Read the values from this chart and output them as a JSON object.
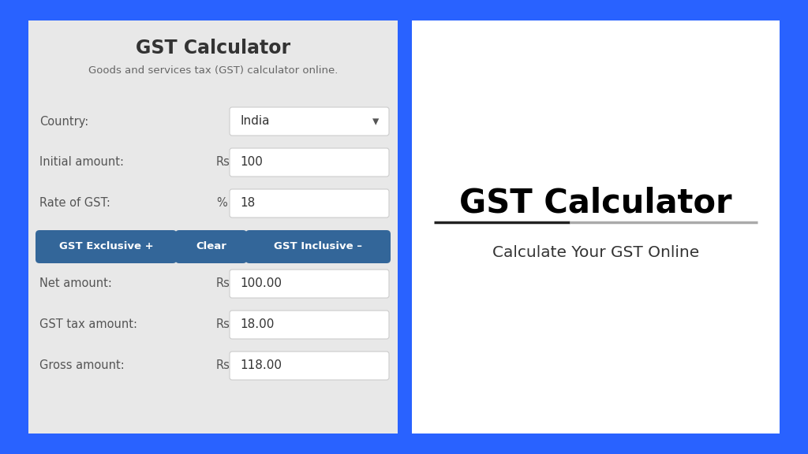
{
  "bg_color": "#2962FF",
  "left_panel_bg": "#E8E8E8",
  "right_panel_bg": "#FFFFFF",
  "card_title": "GST Calculator",
  "card_subtitle": "Goods and services tax (GST) calculator online.",
  "right_title": "GST Calculator",
  "right_subtitle": "Calculate Your GST Online",
  "fields": [
    {
      "label": "Country:",
      "unit": "",
      "value": "India",
      "is_dropdown": true
    },
    {
      "label": "Initial amount:",
      "unit": "Rs",
      "value": "100",
      "is_dropdown": false
    },
    {
      "label": "Rate of GST:",
      "unit": "%",
      "value": "18",
      "is_dropdown": false
    }
  ],
  "buttons": [
    {
      "text": "GST Exclusive +",
      "color": "#336699"
    },
    {
      "text": "Clear",
      "color": "#336699"
    },
    {
      "text": "GST Inclusive –",
      "color": "#336699"
    }
  ],
  "results": [
    {
      "label": "Net amount:",
      "unit": "Rs",
      "value": "100.00"
    },
    {
      "label": "GST tax amount:",
      "unit": "Rs",
      "value": "18.00"
    },
    {
      "label": "Gross amount:",
      "unit": "Rs",
      "value": "118.00"
    }
  ],
  "input_bg": "#FFFFFF",
  "input_border": "#CCCCCC",
  "label_color": "#555555",
  "text_color": "#333333",
  "button_text_color": "#FFFFFF"
}
